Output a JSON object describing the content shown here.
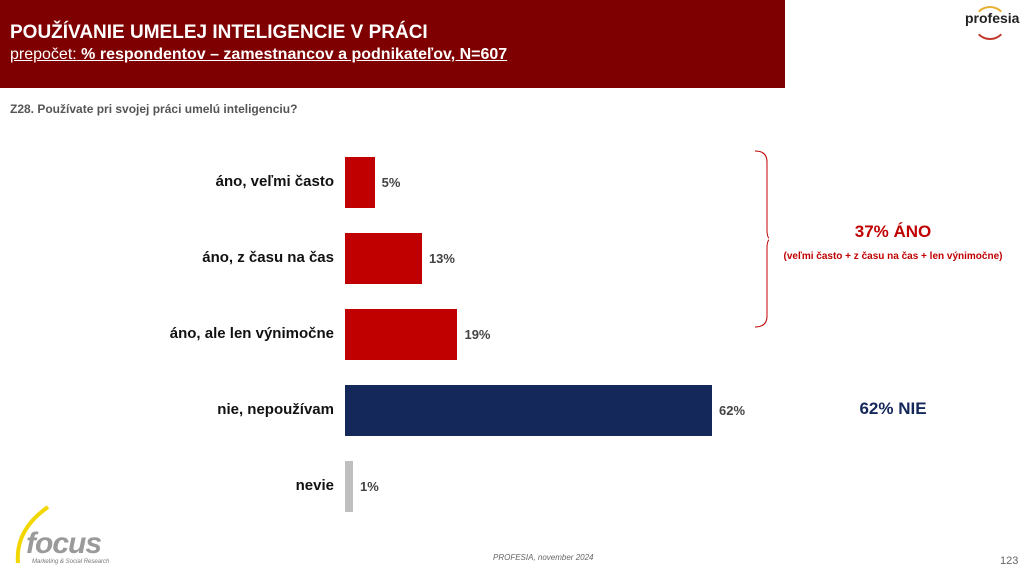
{
  "header": {
    "title": "POUŽÍVANIE UMELEJ INTELIGENCIE V PRÁCI",
    "subtitle_prefix": "prepočet:",
    "subtitle": "% respondentov – zamestnancov a podnikateľov, N=607"
  },
  "logos": {
    "brand": "profesia",
    "agency": "focus",
    "agency_sub": "Marketing & Social Research"
  },
  "question": "Z28. Používate pri svojej práci umelú inteligenciu?",
  "chart_data": {
    "type": "bar",
    "orientation": "horizontal",
    "title": "Z28. Používate pri svojej práci umelú inteligenciu?",
    "categories": [
      "áno, veľmi často",
      "áno, z času na čas",
      "áno, ale len výnimočne",
      "nie, nepoužívam",
      "nevie"
    ],
    "values": [
      5,
      13,
      19,
      62,
      1
    ],
    "labels": [
      "5%",
      "13%",
      "19%",
      "62%",
      "1%"
    ],
    "colors": [
      "#c00000",
      "#c00000",
      "#c00000",
      "#14285a",
      "#bfbfbf"
    ],
    "xlim": [
      0,
      100
    ],
    "unit": "%"
  },
  "summary": {
    "yes_total": "37% ÁNO",
    "yes_note": "(veľmi často + z času na čas + len výnimočne)",
    "no_total": "62% NIE"
  },
  "footer": {
    "source": "PROFESIA, november 2024",
    "page": "123"
  }
}
